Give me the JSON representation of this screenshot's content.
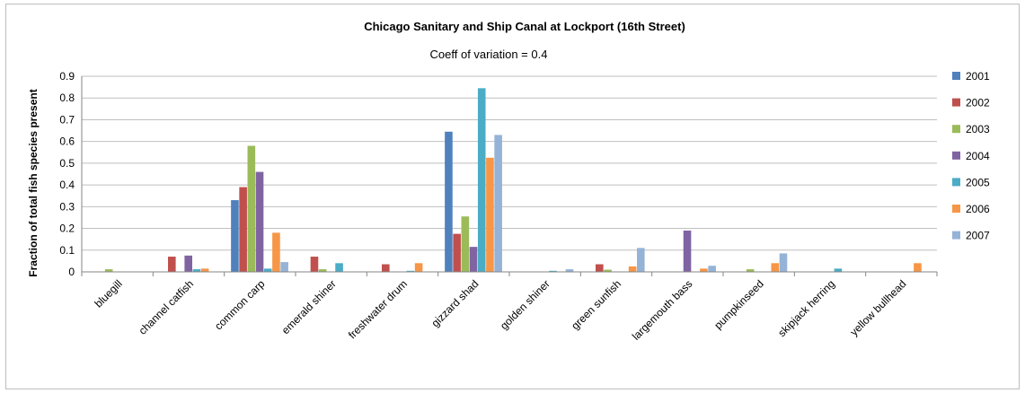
{
  "chart_data": {
    "type": "bar",
    "title": "Chicago Sanitary and Ship Canal at Lockport (16th Street)",
    "subtitle": "Coeff of variation  = 0.4",
    "xlabel": "",
    "ylabel": "Fraction of total fish species present",
    "ylim": [
      0,
      0.9
    ],
    "yticks": [
      "0",
      "0.1",
      "0.2",
      "0.3",
      "0.4",
      "0.5",
      "0.6",
      "0.7",
      "0.8",
      "0.9"
    ],
    "grid": true,
    "legend_position": "right",
    "categories": [
      "bluegill",
      "channel catfish",
      "common carp",
      "emerald shiner",
      "freshwater drum",
      "gizzard shad",
      "golden shiner",
      "green sunfish",
      "largemouth bass",
      "pumpkinseed",
      "skipjack herring",
      "yellow bullhead"
    ],
    "series": [
      {
        "name": "2001",
        "color": "#4f81bd",
        "values": [
          0,
          0,
          0.33,
          0,
          0,
          0.645,
          0,
          0,
          0,
          0,
          0,
          0
        ]
      },
      {
        "name": "2002",
        "color": "#c0504d",
        "values": [
          0,
          0.07,
          0.39,
          0.07,
          0.035,
          0.175,
          0,
          0.035,
          0,
          0,
          0,
          0
        ]
      },
      {
        "name": "2003",
        "color": "#9bbb59",
        "values": [
          0.012,
          0,
          0.58,
          0.012,
          0,
          0.255,
          0,
          0.01,
          0,
          0.012,
          0,
          0
        ]
      },
      {
        "name": "2004",
        "color": "#8064a2",
        "values": [
          0,
          0.075,
          0.46,
          0,
          0,
          0.115,
          0,
          0,
          0.19,
          0,
          0,
          0
        ]
      },
      {
        "name": "2005",
        "color": "#4bacc6",
        "values": [
          0,
          0.012,
          0.015,
          0.04,
          0.005,
          0.845,
          0.005,
          0,
          0,
          0,
          0.015,
          0
        ]
      },
      {
        "name": "2006",
        "color": "#f79646",
        "values": [
          0,
          0.015,
          0.18,
          0,
          0.04,
          0.525,
          0,
          0.025,
          0.015,
          0.04,
          0,
          0.04
        ]
      },
      {
        "name": "2007",
        "color": "#95b3d7",
        "values": [
          0,
          0,
          0.045,
          0,
          0,
          0.63,
          0.012,
          0.11,
          0.028,
          0.085,
          0,
          0
        ]
      }
    ]
  }
}
